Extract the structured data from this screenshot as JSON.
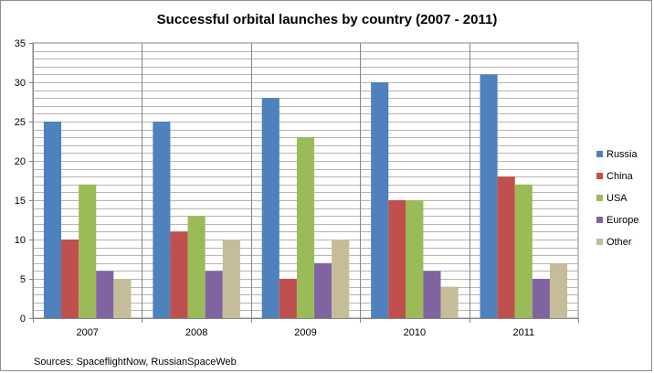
{
  "chart_data": {
    "type": "bar",
    "title": "Successful orbital launches by country (2007 - 2011)",
    "categories": [
      "2007",
      "2008",
      "2009",
      "2010",
      "2011"
    ],
    "series": [
      {
        "name": "Russia",
        "color": "#4f81bd",
        "values": [
          25,
          25,
          28,
          30,
          31
        ]
      },
      {
        "name": "China",
        "color": "#c0504d",
        "values": [
          10,
          11,
          5,
          15,
          18
        ]
      },
      {
        "name": "USA",
        "color": "#9bbb59",
        "values": [
          17,
          13,
          23,
          15,
          17
        ]
      },
      {
        "name": "Europe",
        "color": "#8064a2",
        "values": [
          6,
          6,
          7,
          6,
          5
        ]
      },
      {
        "name": "Other",
        "color": "#c4bd97",
        "values": [
          5,
          10,
          10,
          4,
          7
        ]
      }
    ],
    "ylim": [
      0,
      35
    ],
    "yticks": [
      0,
      5,
      10,
      15,
      20,
      25,
      30,
      35
    ],
    "grid": true,
    "legend": "right",
    "xlabel": "",
    "ylabel": ""
  },
  "source_note": "Sources:  SpaceflightNow, RussianSpaceWeb"
}
